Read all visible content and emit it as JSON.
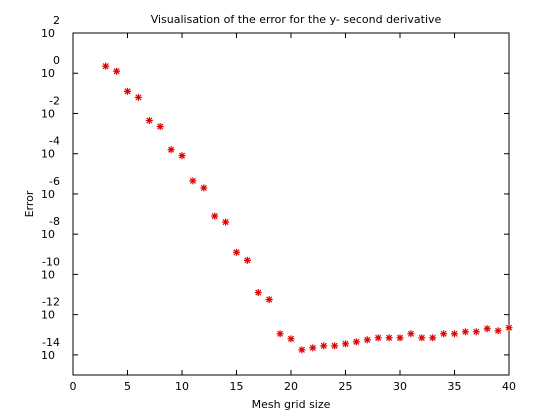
{
  "chart_data": {
    "type": "scatter",
    "title": "Visualisation of the error for the y- second derivative",
    "xlabel": "Mesh grid size",
    "ylabel": "Error",
    "xlim": [
      0,
      40
    ],
    "ylim": [
      -15,
      2
    ],
    "y_scale": "log10",
    "y_ticks": [
      {
        "value": 2,
        "base": "10",
        "exp": "2"
      },
      {
        "value": 0,
        "base": "10",
        "exp": "0"
      },
      {
        "value": -2,
        "base": "10",
        "exp": "-2"
      },
      {
        "value": -4,
        "base": "10",
        "exp": "-4"
      },
      {
        "value": -6,
        "base": "10",
        "exp": "-6"
      },
      {
        "value": -8,
        "base": "10",
        "exp": "-8"
      },
      {
        "value": -10,
        "base": "10",
        "exp": "-10"
      },
      {
        "value": -12,
        "base": "10",
        "exp": "-12"
      },
      {
        "value": -14,
        "base": "10",
        "exp": "-14"
      }
    ],
    "x_ticks": [
      {
        "value": 0,
        "label": "0"
      },
      {
        "value": 5,
        "label": "5"
      },
      {
        "value": 10,
        "label": "10"
      },
      {
        "value": 15,
        "label": "15"
      },
      {
        "value": 20,
        "label": "20"
      },
      {
        "value": 25,
        "label": "25"
      },
      {
        "value": 30,
        "label": "30"
      },
      {
        "value": 35,
        "label": "35"
      },
      {
        "value": 40,
        "label": "40"
      }
    ],
    "grid": false,
    "marker": "asterisk",
    "marker_color": "#e00000",
    "series": [
      {
        "x": [
          3,
          4,
          5,
          6,
          7,
          8,
          9,
          10,
          11,
          12,
          13,
          14,
          15,
          16,
          17,
          18,
          19,
          20,
          21,
          22,
          23,
          24,
          25,
          26,
          27,
          28,
          29,
          30,
          31,
          32,
          33,
          34,
          35,
          36,
          37,
          38,
          39,
          40
        ],
        "y": [
          0.35,
          0.1,
          -0.9,
          -1.2,
          -2.35,
          -2.65,
          -3.8,
          -4.1,
          -5.35,
          -5.7,
          -7.1,
          -7.4,
          -8.9,
          -9.3,
          -10.9,
          -11.25,
          -12.95,
          -13.2,
          -13.75,
          -13.65,
          -13.55,
          -13.55,
          -13.45,
          -13.35,
          -13.25,
          -13.15,
          -13.15,
          -13.15,
          -12.95,
          -13.15,
          -13.15,
          -12.95,
          -12.95,
          -12.85,
          -12.85,
          -12.7,
          -12.8,
          -12.65
        ]
      }
    ]
  }
}
